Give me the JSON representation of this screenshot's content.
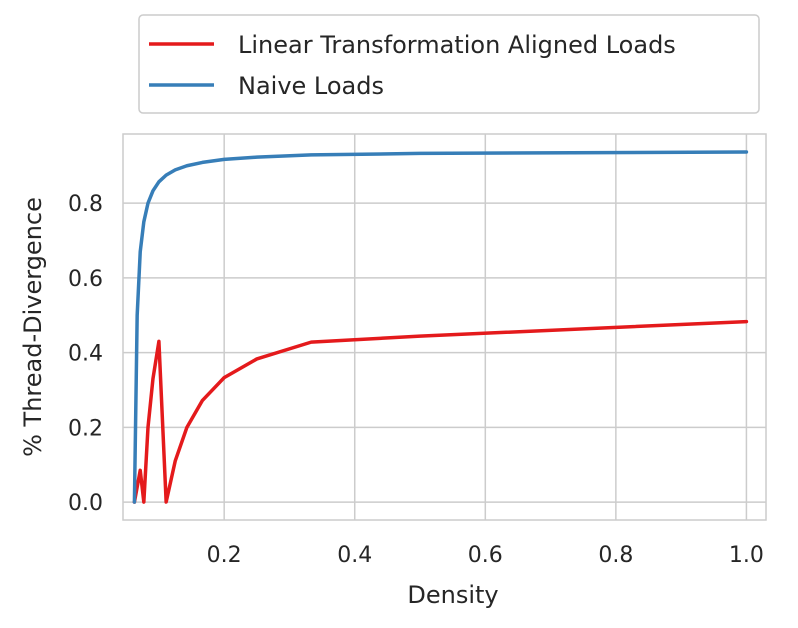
{
  "chart_data": {
    "type": "line",
    "xlabel": "Density",
    "ylabel": "% Thread-Divergence",
    "xlim": [
      0.045,
      1.03
    ],
    "ylim": [
      -0.048,
      0.985
    ],
    "xticks": [
      0.2,
      0.4,
      0.6,
      0.8,
      1.0
    ],
    "xtick_labels": [
      "0.2",
      "0.4",
      "0.6",
      "0.8",
      "1.0"
    ],
    "yticks": [
      0.0,
      0.2,
      0.4,
      0.6,
      0.8
    ],
    "ytick_labels": [
      "0.0",
      "0.2",
      "0.4",
      "0.6",
      "0.8"
    ],
    "grid": true,
    "legend_position": "above plot, left",
    "series": [
      {
        "name": "Linear Transformation Aligned Loads",
        "color": "#e41a1c",
        "x": [
          0.0625,
          0.0714,
          0.0769,
          0.0833,
          0.0909,
          0.1,
          0.1111,
          0.125,
          0.1429,
          0.1667,
          0.2,
          0.25,
          0.3333,
          0.5,
          1.0
        ],
        "y": [
          0.0,
          0.085,
          0.0,
          0.2,
          0.33,
          0.43,
          0.0,
          0.11,
          0.2,
          0.272,
          0.333,
          0.383,
          0.428,
          0.444,
          0.483
        ]
      },
      {
        "name": "Naive Loads",
        "color": "#377eb8",
        "x": [
          0.0625,
          0.0667,
          0.0714,
          0.0769,
          0.0833,
          0.0909,
          0.1,
          0.1111,
          0.125,
          0.1429,
          0.1667,
          0.2,
          0.25,
          0.3333,
          0.5,
          1.0
        ],
        "y": [
          0.0,
          0.5,
          0.67,
          0.75,
          0.8,
          0.833,
          0.857,
          0.875,
          0.889,
          0.9,
          0.909,
          0.917,
          0.923,
          0.929,
          0.933,
          0.937
        ]
      }
    ]
  }
}
